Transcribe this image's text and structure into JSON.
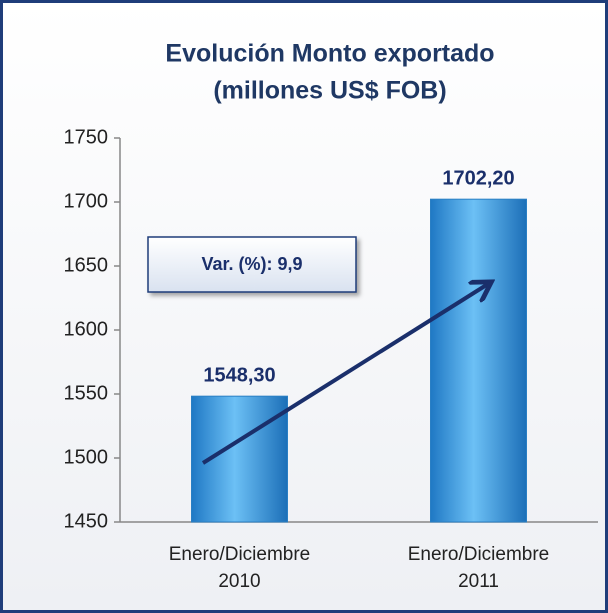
{
  "chart_data": {
    "type": "bar",
    "title": [
      "Evolución Monto exportado",
      "(millones US$ FOB)"
    ],
    "categories": [
      "Enero/Diciembre 2010",
      "Enero/Diciembre 2011"
    ],
    "values": [
      1548.3,
      1702.2
    ],
    "value_labels": [
      "1548,30",
      "1702,20"
    ],
    "color": "#3d9fe0",
    "annotation": "Var. (%): 9,9",
    "ylim": [
      1450,
      1750
    ],
    "yticks": [
      1450,
      1500,
      1550,
      1600,
      1650,
      1700,
      1750
    ],
    "grid": false
  }
}
